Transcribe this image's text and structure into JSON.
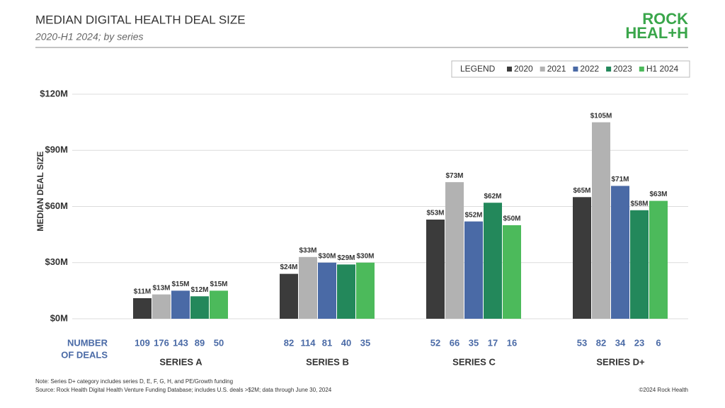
{
  "chart_data": {
    "type": "bar",
    "title": "MEDIAN DIGITAL HEALTH DEAL SIZE",
    "subtitle": "2020-H1 2024; by series",
    "logo": [
      "ROCK",
      "HEAL+H"
    ],
    "y_label": "MEDIAN DEAL SIZE",
    "legend_title": "LEGEND",
    "deal_count_label": [
      "NUMBER",
      "OF DEALS"
    ],
    "categories": [
      "SERIES A",
      "SERIES B",
      "SERIES C",
      "SERIES D+"
    ],
    "series": [
      {
        "name": "2020",
        "color": "#3b3b3b",
        "values": [
          11,
          24,
          53,
          65
        ],
        "value_labels": [
          "$11M",
          "$24M",
          "$53M",
          "$65M"
        ],
        "deal_counts": [
          109,
          82,
          52,
          53
        ]
      },
      {
        "name": "2021",
        "color": "#b2b2b2",
        "values": [
          13,
          33,
          73,
          105
        ],
        "value_labels": [
          "$13M",
          "$33M",
          "$73M",
          "$105M"
        ],
        "deal_counts": [
          176,
          114,
          66,
          82
        ]
      },
      {
        "name": "2022",
        "color": "#4a6aa6",
        "values": [
          15,
          30,
          52,
          71
        ],
        "value_labels": [
          "$15M",
          "$30M",
          "$52M",
          "$71M"
        ],
        "deal_counts": [
          143,
          81,
          35,
          34
        ]
      },
      {
        "name": "2023",
        "color": "#23885b",
        "values": [
          12,
          29,
          62,
          58
        ],
        "value_labels": [
          "$12M",
          "$29M",
          "$62M",
          "$58M"
        ],
        "deal_counts": [
          89,
          40,
          17,
          23
        ]
      },
      {
        "name": "H1 2024",
        "color": "#4cba5b",
        "values": [
          15,
          30,
          50,
          63
        ],
        "value_labels": [
          "$15M",
          "$30M",
          "$50M",
          "$63M"
        ],
        "deal_counts": [
          50,
          35,
          16,
          6
        ]
      }
    ],
    "ylim": [
      0,
      120
    ],
    "yticks": [
      {
        "value": 0,
        "label": "$0M"
      },
      {
        "value": 30,
        "label": "$30M"
      },
      {
        "value": 60,
        "label": "$60M"
      },
      {
        "value": 90,
        "label": "$90M"
      },
      {
        "value": 120,
        "label": "$120M"
      }
    ],
    "grid": true,
    "legend": "top-right",
    "note": "Note: Series D+ category includes series D, E, F, G, H, and PE/Growth funding",
    "source": "Source: Rock Health Digital Health Venture Funding Database; includes U.S. deals >$2M; data through June 30, 2024",
    "copyright": "©2024 Rock Health"
  }
}
